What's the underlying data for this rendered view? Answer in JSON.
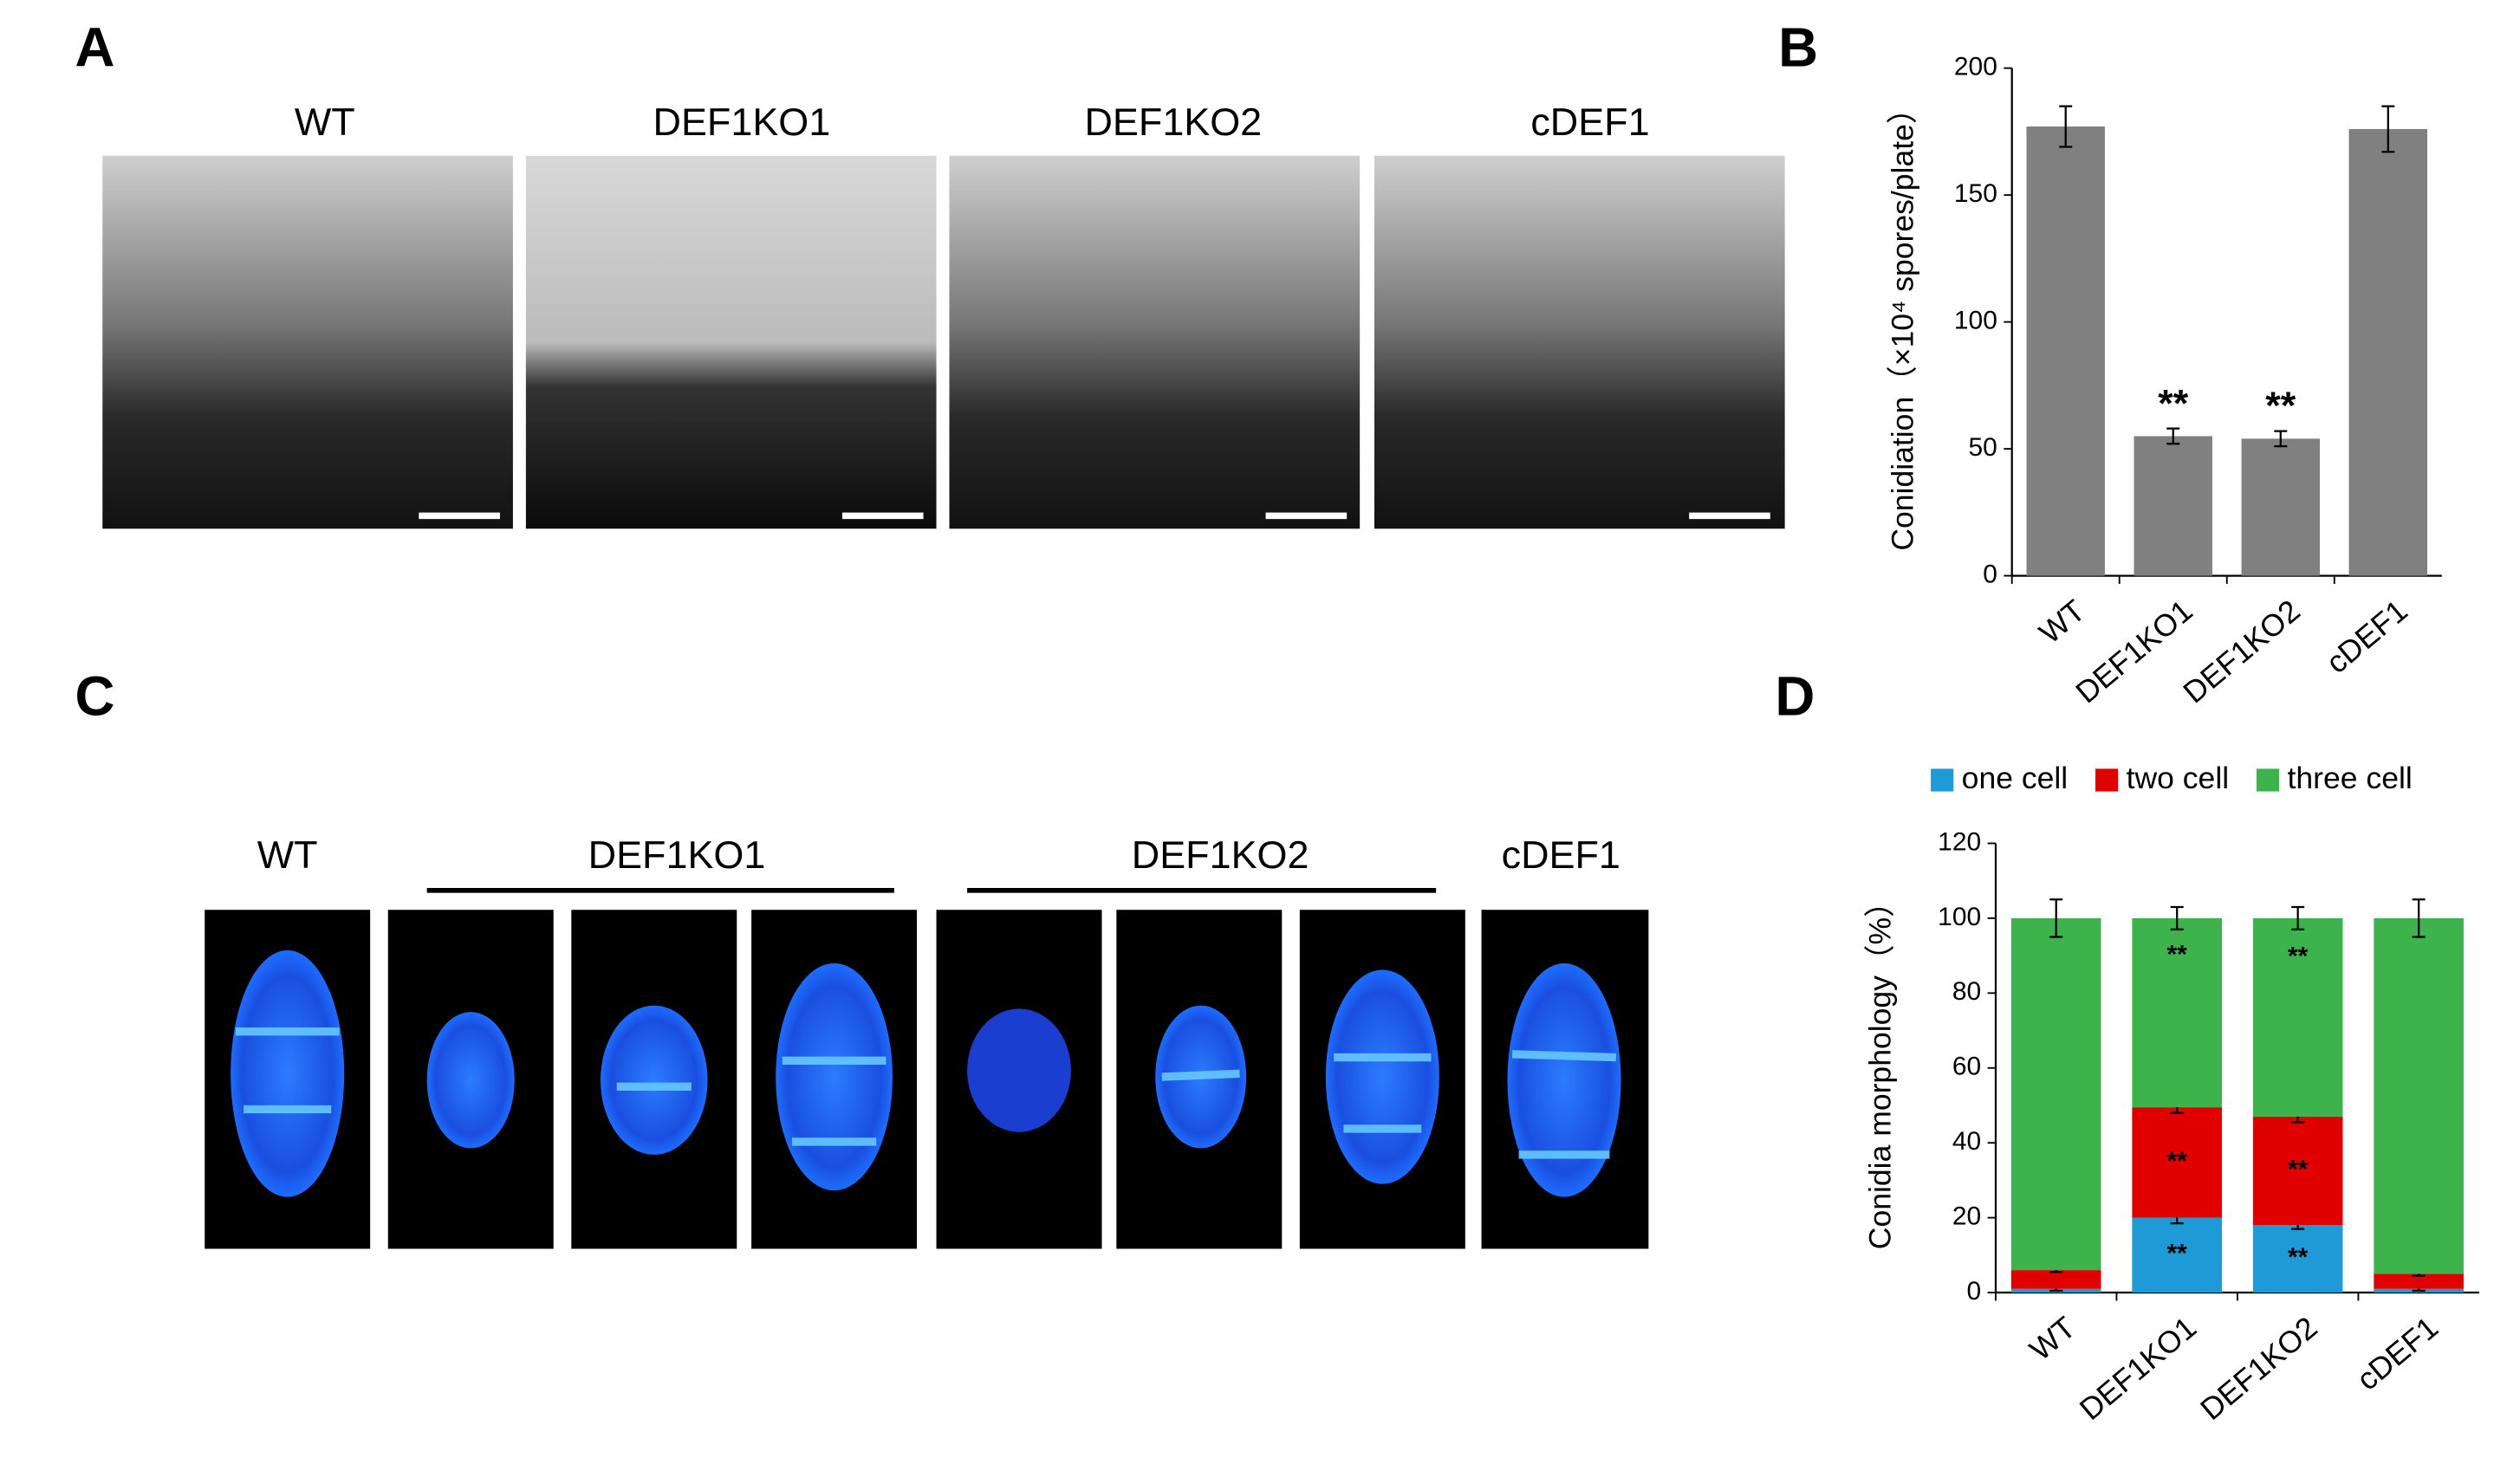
{
  "panels": {
    "a": "A",
    "b": "B",
    "c": "C",
    "d": "D"
  },
  "panel_a": {
    "labels": [
      "WT",
      "DEF1KO1",
      "DEF1KO2",
      "cDEF1"
    ]
  },
  "panel_c": {
    "labels": [
      "WT",
      "DEF1KO1",
      "DEF1KO2",
      "cDEF1"
    ]
  },
  "chart_data": [
    {
      "type": "bar",
      "y_label": "Conidiation（×10⁴ spores/plate）",
      "categories": [
        "WT",
        "DEF1KO1",
        "DEF1KO2",
        "cDEF1"
      ],
      "values": [
        177,
        55,
        54,
        176
      ],
      "errors": [
        8,
        3,
        3,
        9
      ],
      "annotations": [
        null,
        "**",
        "**",
        null
      ],
      "color": "#808080",
      "ylim": [
        0,
        200
      ],
      "yticks": [
        0,
        50,
        100,
        150,
        200
      ]
    },
    {
      "type": "stacked_bar",
      "y_label": "Conidia morphology（%）",
      "categories": [
        "WT",
        "DEF1KO1",
        "DEF1KO2",
        "cDEF1"
      ],
      "legend": "top",
      "series": [
        {
          "name": "one cell",
          "color": "#1e9ad6",
          "values": [
            1,
            20,
            18,
            1
          ],
          "errors": [
            0.5,
            1.5,
            1,
            0.5
          ],
          "annotations": [
            null,
            "**",
            "**",
            null
          ]
        },
        {
          "name": "two cell",
          "color": "#e00000",
          "values": [
            5,
            29.5,
            29,
            4
          ],
          "errors": [
            0.5,
            1.5,
            1.5,
            0.5
          ],
          "annotations": [
            null,
            "**",
            "**",
            null
          ]
        },
        {
          "name": "three cell",
          "color": "#3cb44b",
          "values": [
            94,
            50.5,
            53,
            95
          ],
          "errors": [
            5,
            3,
            3,
            5
          ],
          "annotations": [
            null,
            "**",
            "**",
            null
          ]
        }
      ],
      "ylim": [
        0,
        120
      ],
      "yticks": [
        0,
        20,
        40,
        60,
        80,
        100,
        120
      ]
    }
  ]
}
